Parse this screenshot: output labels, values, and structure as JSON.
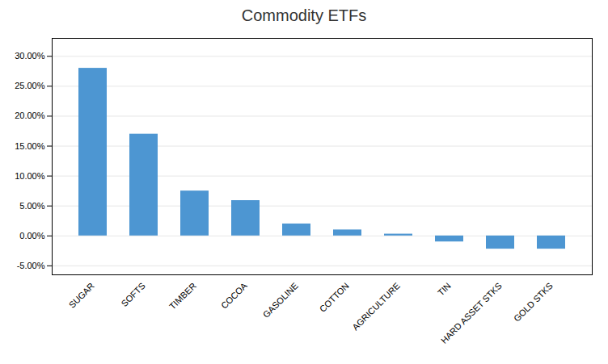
{
  "chart_data": {
    "type": "bar",
    "title": "Commodity ETFs",
    "categories": [
      "SUGAR",
      "SOFTS",
      "TIMBER",
      "COCOA",
      "GASOLINE",
      "COTTON",
      "AGRICULTURE",
      "TIN",
      "HARD ASSET STKS",
      "GOLD STKS"
    ],
    "values": [
      0.28,
      0.17,
      0.075,
      0.059,
      0.02,
      0.01,
      0.003,
      -0.01,
      -0.022,
      -0.022
    ],
    "color": "#4d96d2",
    "ylim": [
      -0.065,
      0.33
    ],
    "yticks": [
      {
        "value": -0.05,
        "label": "-5.00%"
      },
      {
        "value": 0.0,
        "label": "0.00%"
      },
      {
        "value": 0.05,
        "label": "5.00%"
      },
      {
        "value": 0.1,
        "label": "10.00%"
      },
      {
        "value": 0.15,
        "label": "15.00%"
      },
      {
        "value": 0.2,
        "label": "20.00%"
      },
      {
        "value": 0.25,
        "label": "25.00%"
      },
      {
        "value": 0.3,
        "label": "30.00%"
      }
    ],
    "grid": true
  }
}
